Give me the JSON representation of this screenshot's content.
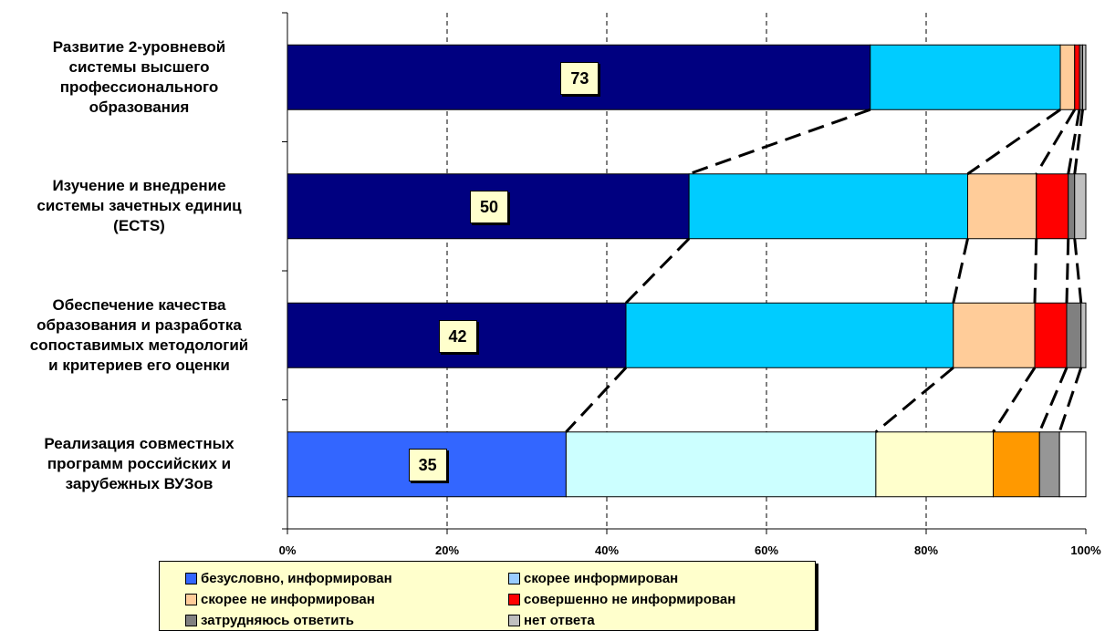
{
  "chart_data": {
    "type": "bar",
    "orientation": "horizontal",
    "stacked": true,
    "categories": [
      "Развитие 2-уровневой\nсистемы высшего\nпрофессионального\nобразования",
      "Изучение и внедрение\nсистемы зачетных единиц\n(ECTS)",
      "Обеспечение качества\nобразования и разработка\nсопоставимых методологий\nи критериев его оценки",
      "Реализация совместных\nпрограмм российских и\nзарубежных ВУЗов"
    ],
    "series": [
      {
        "name": "безусловно, информирован",
        "values": [
          73,
          50.3,
          42.4,
          34.9
        ]
      },
      {
        "name": "скорее информирован",
        "values": [
          23.8,
          34.9,
          41,
          38.8
        ]
      },
      {
        "name": "скорее не информирован",
        "values": [
          1.8,
          8.6,
          10.2,
          14.7
        ]
      },
      {
        "name": "совершенно не информирован",
        "values": [
          0.6,
          4,
          4,
          5.8
        ]
      },
      {
        "name": "затрудняюсь ответить",
        "values": [
          0.4,
          0.8,
          1.8,
          2.5
        ]
      },
      {
        "name": "нет ответа",
        "values": [
          0.4,
          1.4,
          0.6,
          3.3
        ]
      }
    ],
    "data_labels": [
      "73",
      "50",
      "42",
      "35"
    ],
    "x_ticks": [
      "0%",
      "20%",
      "40%",
      "60%",
      "80%",
      "100%"
    ],
    "xlim": [
      0,
      100
    ],
    "grid": "vertical dashed",
    "legend_position": "bottom",
    "colors": {
      "standard": [
        "#000080",
        "#00ccff",
        "#ffcc99",
        "#ff0000",
        "#808080",
        "#c0c0c0"
      ],
      "last_bar": [
        "#3366ff",
        "#ccffff",
        "#ffffcc",
        "#ff9900",
        "#969696",
        "#ffffff"
      ],
      "legend": [
        "#3366ff",
        "#99ccff",
        "#ffcc99",
        "#ff0000",
        "#808080",
        "#c0c0c0"
      ]
    }
  }
}
